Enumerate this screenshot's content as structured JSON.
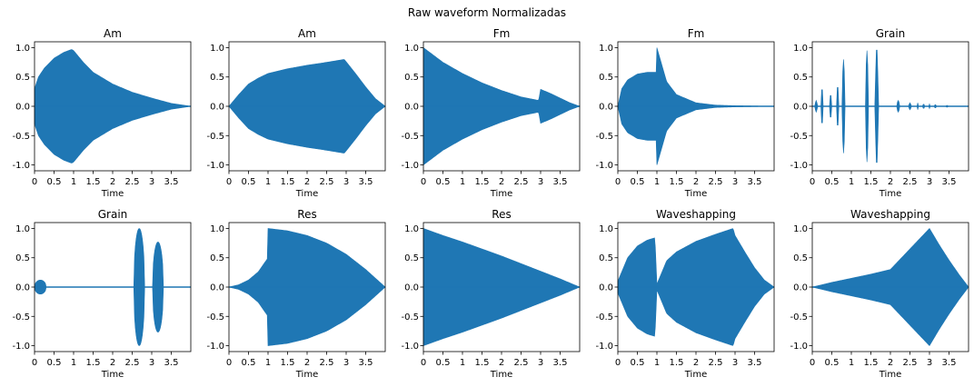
{
  "figure": {
    "title": "Raw waveform Normalizadas"
  },
  "chart_data": [
    {
      "type": "area",
      "title": "Am",
      "xlabel": "Time",
      "ylabel": "",
      "xlim": [
        0,
        4
      ],
      "ylim": [
        -1.1,
        1.1
      ],
      "xticks": [
        "0",
        "0.5",
        "1",
        "1.5",
        "2",
        "2.5",
        "3",
        "3.5"
      ],
      "yticks": [
        "-1.0",
        "-0.5",
        "0.0",
        "0.5",
        "1.0"
      ],
      "color": "#1f77b4",
      "envelope": {
        "x": [
          0,
          0.1,
          0.25,
          0.5,
          0.75,
          0.95,
          1.0,
          1.25,
          1.5,
          2.0,
          2.5,
          3.0,
          3.5,
          4.0
        ],
        "y": [
          0.3,
          0.5,
          0.65,
          0.82,
          0.92,
          0.97,
          0.95,
          0.75,
          0.58,
          0.38,
          0.24,
          0.14,
          0.05,
          0.0
        ]
      }
    },
    {
      "type": "area",
      "title": "Am",
      "xlabel": "Time",
      "ylabel": "",
      "xlim": [
        0,
        4
      ],
      "ylim": [
        -1.1,
        1.1
      ],
      "xticks": [
        "0",
        "0.5",
        "1",
        "1.5",
        "2",
        "2.5",
        "3",
        "3.5"
      ],
      "yticks": [
        "-1.0",
        "-0.5",
        "0.0",
        "0.5",
        "1.0"
      ],
      "color": "#1f77b4",
      "envelope": {
        "x": [
          0,
          0.25,
          0.5,
          0.75,
          1.0,
          1.5,
          2.0,
          2.5,
          2.95,
          3.0,
          3.25,
          3.5,
          3.75,
          4.0
        ],
        "y": [
          0.0,
          0.2,
          0.38,
          0.48,
          0.56,
          0.64,
          0.7,
          0.75,
          0.8,
          0.76,
          0.55,
          0.33,
          0.13,
          0.0
        ]
      }
    },
    {
      "type": "area",
      "title": "Fm",
      "xlabel": "Time",
      "ylabel": "",
      "xlim": [
        0,
        4
      ],
      "ylim": [
        -1.1,
        1.1
      ],
      "xticks": [
        "0",
        "0.5",
        "1",
        "1.5",
        "2",
        "2.5",
        "3",
        "3.5"
      ],
      "yticks": [
        "-1.0",
        "-0.5",
        "0.0",
        "0.5",
        "1.0"
      ],
      "color": "#1f77b4",
      "envelope": {
        "x": [
          0,
          0.5,
          1.0,
          1.5,
          2.0,
          2.5,
          2.95,
          3.0,
          3.25,
          3.5,
          3.75,
          4.0
        ],
        "y": [
          1.0,
          0.75,
          0.56,
          0.4,
          0.27,
          0.16,
          0.1,
          0.29,
          0.22,
          0.14,
          0.06,
          0.0
        ]
      }
    },
    {
      "type": "area",
      "title": "Fm",
      "xlabel": "Time",
      "ylabel": "",
      "xlim": [
        0,
        4
      ],
      "ylim": [
        -1.1,
        1.1
      ],
      "xticks": [
        "0",
        "0.5",
        "1",
        "1.5",
        "2",
        "2.5",
        "3",
        "3.5"
      ],
      "yticks": [
        "-1.0",
        "-0.5",
        "0.0",
        "0.5",
        "1.0"
      ],
      "color": "#1f77b4",
      "envelope": {
        "x": [
          0,
          0.1,
          0.25,
          0.5,
          0.75,
          0.98,
          1.0,
          1.25,
          1.5,
          2.0,
          2.5,
          3.0,
          4.0
        ],
        "y": [
          0.0,
          0.3,
          0.45,
          0.55,
          0.58,
          0.58,
          1.0,
          0.42,
          0.2,
          0.06,
          0.02,
          0.01,
          0.0
        ]
      }
    },
    {
      "type": "area",
      "title": "Grain",
      "xlabel": "Time",
      "ylabel": "",
      "xlim": [
        0,
        4
      ],
      "ylim": [
        -1.1,
        1.1
      ],
      "xticks": [
        "0",
        "0.5",
        "1",
        "1.5",
        "2",
        "2.5",
        "3",
        "3.5"
      ],
      "yticks": [
        "-1.0",
        "-0.5",
        "0.0",
        "0.5",
        "1.0"
      ],
      "color": "#1f77b4",
      "grains": [
        {
          "center": 0.1,
          "width": 0.05,
          "amp": 0.1
        },
        {
          "center": 0.25,
          "width": 0.06,
          "amp": 0.3
        },
        {
          "center": 0.47,
          "width": 0.05,
          "amp": 0.2
        },
        {
          "center": 0.65,
          "width": 0.05,
          "amp": 0.35
        },
        {
          "center": 0.8,
          "width": 0.06,
          "amp": 0.8
        },
        {
          "center": 1.4,
          "width": 0.06,
          "amp": 0.95
        },
        {
          "center": 1.65,
          "width": 0.07,
          "amp": 1.0
        },
        {
          "center": 2.2,
          "width": 0.06,
          "amp": 0.1
        },
        {
          "center": 2.5,
          "width": 0.05,
          "amp": 0.06
        },
        {
          "center": 2.7,
          "width": 0.04,
          "amp": 0.06
        },
        {
          "center": 2.85,
          "width": 0.04,
          "amp": 0.04
        },
        {
          "center": 3.0,
          "width": 0.04,
          "amp": 0.04
        },
        {
          "center": 3.15,
          "width": 0.04,
          "amp": 0.03
        },
        {
          "center": 3.45,
          "width": 0.03,
          "amp": 0.02
        }
      ]
    },
    {
      "type": "area",
      "title": "Grain",
      "xlabel": "Time",
      "ylabel": "",
      "xlim": [
        0,
        4
      ],
      "ylim": [
        -1.1,
        1.1
      ],
      "xticks": [
        "0",
        "0.5",
        "1",
        "1.5",
        "2",
        "2.5",
        "3",
        "3.5"
      ],
      "yticks": [
        "-1.0",
        "-0.5",
        "0.0",
        "0.5",
        "1.0"
      ],
      "color": "#1f77b4",
      "grains": [
        {
          "center": 0.15,
          "width": 0.3,
          "amp": 0.12
        },
        {
          "center": 2.68,
          "width": 0.28,
          "amp": 1.0
        },
        {
          "center": 3.16,
          "width": 0.28,
          "amp": 0.77
        }
      ]
    },
    {
      "type": "area",
      "title": "Res",
      "xlabel": "Time",
      "ylabel": "",
      "xlim": [
        0,
        4
      ],
      "ylim": [
        -1.1,
        1.1
      ],
      "xticks": [
        "0",
        "0.5",
        "1",
        "1.5",
        "2",
        "2.5",
        "3",
        "3.5"
      ],
      "yticks": [
        "-1.0",
        "-0.5",
        "0.0",
        "0.5",
        "1.0"
      ],
      "color": "#1f77b4",
      "envelope": {
        "x": [
          0,
          0.25,
          0.5,
          0.75,
          0.98,
          1.0,
          1.5,
          2.0,
          2.5,
          3.0,
          3.5,
          3.75,
          4.0
        ],
        "y": [
          0.0,
          0.04,
          0.12,
          0.26,
          0.48,
          1.0,
          0.96,
          0.88,
          0.75,
          0.56,
          0.3,
          0.15,
          0.0
        ]
      }
    },
    {
      "type": "area",
      "title": "Res",
      "xlabel": "Time",
      "ylabel": "",
      "xlim": [
        0,
        4
      ],
      "ylim": [
        -1.1,
        1.1
      ],
      "xticks": [
        "0",
        "0.5",
        "1",
        "1.5",
        "2",
        "2.5",
        "3",
        "3.5"
      ],
      "yticks": [
        "-1.0",
        "-0.5",
        "0.0",
        "0.5",
        "1.0"
      ],
      "color": "#1f77b4",
      "envelope": {
        "x": [
          0,
          0.5,
          1.0,
          1.5,
          2.0,
          2.5,
          3.0,
          3.5,
          4.0
        ],
        "y": [
          1.0,
          0.88,
          0.77,
          0.65,
          0.53,
          0.4,
          0.27,
          0.14,
          0.0
        ]
      }
    },
    {
      "type": "area",
      "title": "Waveshapping",
      "xlabel": "Time",
      "ylabel": "",
      "xlim": [
        0,
        4
      ],
      "ylim": [
        -1.1,
        1.1
      ],
      "xticks": [
        "0",
        "0.5",
        "1",
        "1.5",
        "2",
        "2.5",
        "3",
        "3.5"
      ],
      "yticks": [
        "-1.0",
        "-0.5",
        "0.0",
        "0.5",
        "1.0"
      ],
      "color": "#1f77b4",
      "envelope": {
        "x": [
          0,
          0.25,
          0.5,
          0.75,
          0.95,
          1.0,
          1.25,
          1.5,
          2.0,
          2.5,
          2.95,
          3.0,
          3.25,
          3.5,
          3.75,
          4.0
        ],
        "y": [
          0.1,
          0.5,
          0.7,
          0.8,
          0.84,
          0.05,
          0.45,
          0.6,
          0.78,
          0.9,
          1.0,
          0.88,
          0.6,
          0.33,
          0.12,
          0.0
        ]
      }
    },
    {
      "type": "area",
      "title": "Waveshapping",
      "xlabel": "Time",
      "ylabel": "",
      "xlim": [
        0,
        4
      ],
      "ylim": [
        -1.1,
        1.1
      ],
      "xticks": [
        "0",
        "0.5",
        "1",
        "1.5",
        "2",
        "2.5",
        "3",
        "3.5"
      ],
      "yticks": [
        "-1.0",
        "-0.5",
        "0.0",
        "0.5",
        "1.0"
      ],
      "color": "#1f77b4",
      "envelope": {
        "x": [
          0,
          0.5,
          1.0,
          1.5,
          2.0,
          2.5,
          3.0,
          3.25,
          3.5,
          3.75,
          4.0
        ],
        "y": [
          0.0,
          0.08,
          0.15,
          0.22,
          0.3,
          0.65,
          1.0,
          0.72,
          0.46,
          0.22,
          0.0
        ]
      }
    }
  ]
}
